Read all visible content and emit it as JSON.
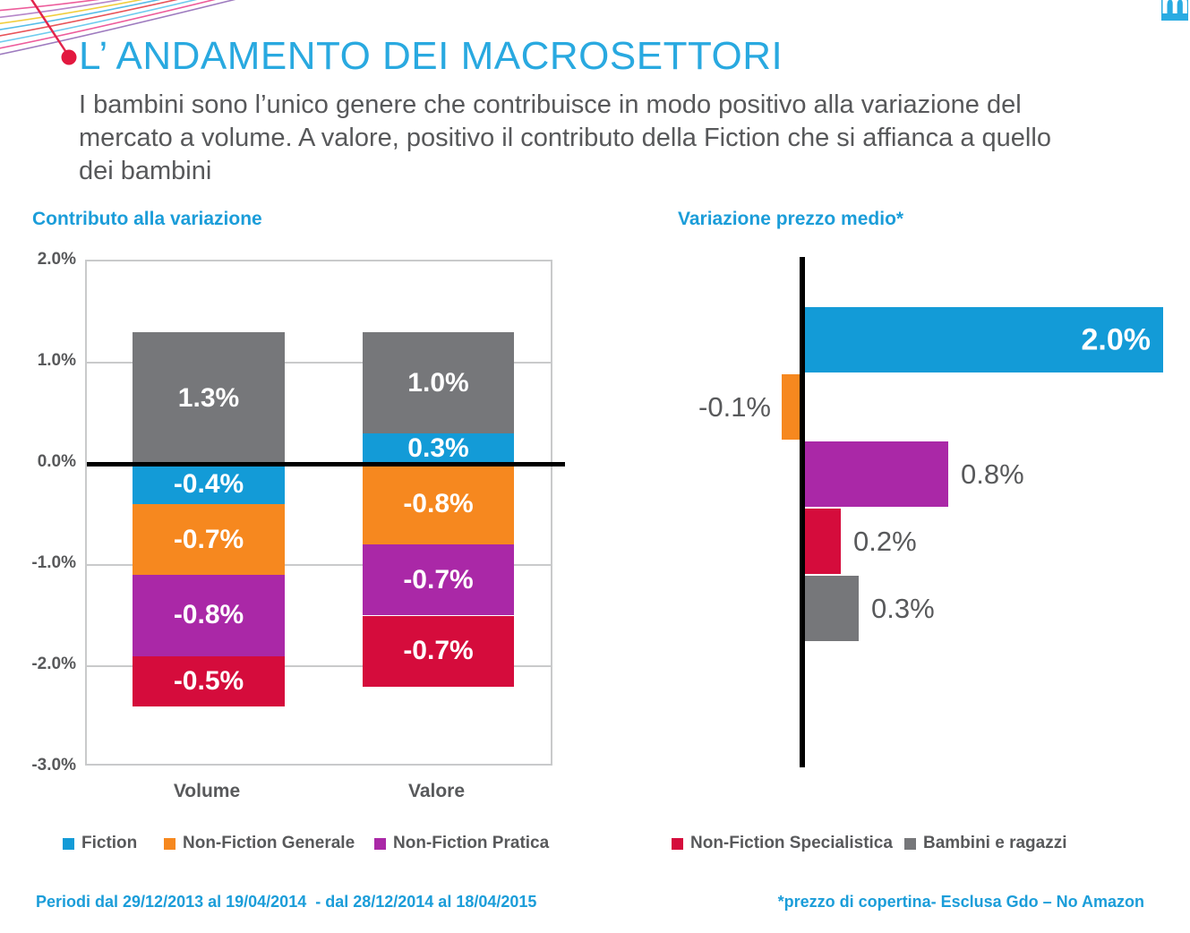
{
  "colors": {
    "blue": "#139BD7",
    "orange": "#F6881F",
    "purple": "#AA28A7",
    "red": "#D50C3C",
    "gray": "#76777A",
    "title_blue": "#29A9E0",
    "accent_blue": "#1B9DD9",
    "text_dark": "#57585A",
    "grid_gray": "#C9CACB",
    "axis_black": "#000000",
    "decoration_red": "#E2183F"
  },
  "logo": {
    "letter": "m"
  },
  "header": {
    "title": "L’ ANDAMENTO DEI MACROSETTORI",
    "subtitle_lines": [
      "I bambini sono l’unico genere che contribuisce in modo positivo alla variazione del",
      "mercato a volume. A valore, positivo il contributo della Fiction che si affianca a quello",
      "dei bambini"
    ]
  },
  "chart_data": [
    {
      "id": "contributo",
      "type": "bar",
      "variant": "stacked-column",
      "title": "Contributo alla variazione",
      "categories": [
        "Volume",
        "Valore"
      ],
      "series": [
        {
          "name": "Bambini e ragazzi",
          "color": "gray",
          "values": [
            1.3,
            1.0
          ],
          "labels": [
            "1.3%",
            "1.0%"
          ]
        },
        {
          "name": "Fiction",
          "color": "blue",
          "values": [
            -0.4,
            0.3
          ],
          "labels": [
            "-0.4%",
            "0.3%"
          ]
        },
        {
          "name": "Non-Fiction Generale",
          "color": "orange",
          "values": [
            -0.7,
            -0.8
          ],
          "labels": [
            "-0.7%",
            "-0.8%"
          ]
        },
        {
          "name": "Non-Fiction Pratica",
          "color": "purple",
          "values": [
            -0.8,
            -0.7
          ],
          "labels": [
            "-0.8%",
            "-0.7%"
          ]
        },
        {
          "name": "Non-Fiction Specialistica",
          "color": "red",
          "values": [
            -0.5,
            -0.7
          ],
          "labels": [
            "-0.5%",
            "-0.7%"
          ]
        }
      ],
      "y_ticks": [
        2.0,
        1.0,
        0.0,
        -1.0,
        -2.0,
        -3.0
      ],
      "y_tick_labels": [
        "2.0%",
        "1.0%",
        "0.0%",
        "-1.0%",
        "-2.0%",
        "-3.0%"
      ],
      "ylim": [
        -3.0,
        2.0
      ],
      "unit": "%",
      "grid": true,
      "zero_line": true
    },
    {
      "id": "prezzo-medio",
      "type": "bar",
      "variant": "horizontal",
      "title": "Variazione prezzo medio*",
      "categories": [
        "Fiction",
        "Non-Fiction Generale",
        "Non-Fiction Pratica",
        "Non-Fiction Specialistica",
        "Bambini e ragazzi"
      ],
      "values": [
        2.0,
        -0.1,
        0.8,
        0.2,
        0.3
      ],
      "labels": [
        "2.0%",
        "-0.1%",
        "0.8%",
        "0.2%",
        "0.3%"
      ],
      "label_placement": [
        "inside-right",
        "left",
        "right",
        "right",
        "right"
      ],
      "colors": [
        "blue",
        "orange",
        "purple",
        "red",
        "gray"
      ],
      "unit": "%",
      "grid": false,
      "zero_axis": true
    }
  ],
  "legend": {
    "items": [
      {
        "label": "Fiction",
        "color": "blue"
      },
      {
        "label": "Non-Fiction Generale",
        "color": "orange"
      },
      {
        "label": "Non-Fiction Pratica",
        "color": "purple"
      },
      {
        "label": "Non-Fiction Specialistica",
        "color": "red"
      },
      {
        "label": "Bambini e ragazzi",
        "color": "gray"
      }
    ],
    "position": "bottom"
  },
  "footer": {
    "periods": "Periodi dal 29/12/2013 al 19/04/2014  - dal 28/12/2014 al 18/04/2015",
    "price_note": "*prezzo di copertina- Esclusa Gdo – No Amazon"
  }
}
